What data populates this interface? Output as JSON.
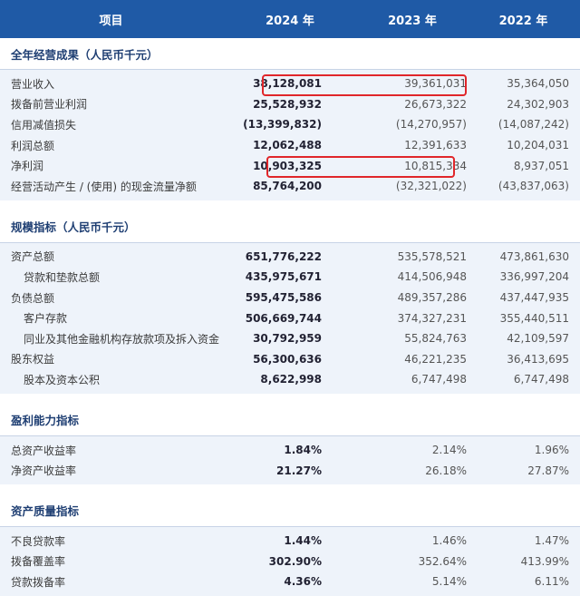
{
  "header": {
    "item": "项目",
    "y2024": "2024 年",
    "y2023": "2023 年",
    "y2022": "2022 年"
  },
  "sections": [
    {
      "title": "全年经营成果（人民币千元）",
      "rows": [
        {
          "label": "营业收入",
          "indent": false,
          "v2024": "38,128,081",
          "v2023": "39,361,031",
          "v2022": "35,364,050"
        },
        {
          "label": "拨备前营业利润",
          "indent": false,
          "v2024": "25,528,932",
          "v2023": "26,673,322",
          "v2022": "24,302,903"
        },
        {
          "label": "信用减值损失",
          "indent": false,
          "v2024": "(13,399,832)",
          "v2023": "(14,270,957)",
          "v2022": "(14,087,242)"
        },
        {
          "label": "利润总额",
          "indent": false,
          "v2024": "12,062,488",
          "v2023": "12,391,633",
          "v2022": "10,204,031"
        },
        {
          "label": "净利润",
          "indent": false,
          "v2024": "10,903,325",
          "v2023": "10,815,334",
          "v2022": "8,937,051"
        },
        {
          "label": "经营活动产生 / (使用) 的现金流量净额",
          "indent": false,
          "v2024": "85,764,200",
          "v2023": "(32,321,022)",
          "v2022": "(43,837,063)"
        }
      ]
    },
    {
      "title": "规模指标（人民币千元）",
      "rows": [
        {
          "label": "资产总额",
          "indent": false,
          "v2024": "651,776,222",
          "v2023": "535,578,521",
          "v2022": "473,861,630"
        },
        {
          "label": "贷款和垫款总额",
          "indent": true,
          "v2024": "435,975,671",
          "v2023": "414,506,948",
          "v2022": "336,997,204"
        },
        {
          "label": "负债总额",
          "indent": false,
          "v2024": "595,475,586",
          "v2023": "489,357,286",
          "v2022": "437,447,935"
        },
        {
          "label": "客户存款",
          "indent": true,
          "v2024": "506,669,744",
          "v2023": "374,327,231",
          "v2022": "355,440,511"
        },
        {
          "label": "同业及其他金融机构存放款项及拆入资金",
          "indent": true,
          "v2024": "30,792,959",
          "v2023": "55,824,763",
          "v2022": "42,109,597"
        },
        {
          "label": "股东权益",
          "indent": false,
          "v2024": "56,300,636",
          "v2023": "46,221,235",
          "v2022": "36,413,695"
        },
        {
          "label": "股本及资本公积",
          "indent": true,
          "v2024": "8,622,998",
          "v2023": "6,747,498",
          "v2022": "6,747,498"
        }
      ]
    },
    {
      "title": "盈利能力指标",
      "rows": [
        {
          "label": "总资产收益率",
          "indent": false,
          "v2024": "1.84%",
          "v2023": "2.14%",
          "v2022": "1.96%"
        },
        {
          "label": "净资产收益率",
          "indent": false,
          "v2024": "21.27%",
          "v2023": "26.18%",
          "v2022": "27.87%"
        }
      ]
    },
    {
      "title": "资产质量指标",
      "rows": [
        {
          "label": "不良贷款率",
          "indent": false,
          "v2024": "1.44%",
          "v2023": "1.46%",
          "v2022": "1.47%"
        },
        {
          "label": "拨备覆盖率",
          "indent": false,
          "v2024": "302.90%",
          "v2023": "352.64%",
          "v2022": "413.99%"
        },
        {
          "label": "贷款拨备率",
          "indent": false,
          "v2024": "4.36%",
          "v2023": "5.14%",
          "v2022": "6.11%"
        }
      ]
    }
  ],
  "colors": {
    "header_bg": "#1f5aa6",
    "section_text": "#1f3f73",
    "block_bg": "#eef3fa",
    "highlight": "#e0262a"
  }
}
